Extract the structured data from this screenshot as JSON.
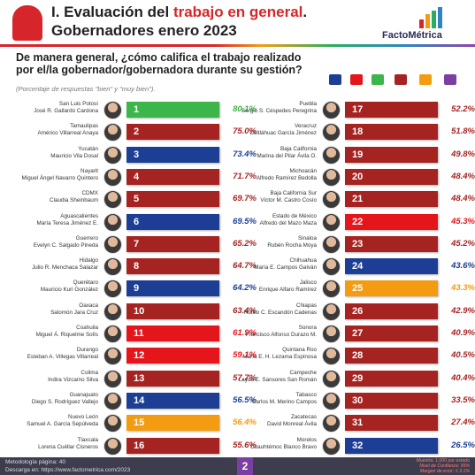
{
  "header": {
    "title_prefix": "I. Evaluación del ",
    "title_highlight": "trabajo en general",
    "title_suffix": ".",
    "title_line2": "Gobernadores enero 2023",
    "logo": "FactoMétrica"
  },
  "question": "De manera general, ¿cómo califica el trabajo realizado por el/la gobernador/gobernadora durante su gestión?",
  "subtitle": "(Porcentaje de respuestas \"bien\" y \"muy bien\").",
  "columns": [
    [
      {
        "state": "San Luis Potosí",
        "name": "José R. Gallardo Cardona",
        "rank": "1",
        "percent": "80.1%",
        "color": "#3cb54a"
      },
      {
        "state": "Tamaulipas",
        "name": "Américo Villarreal Anaya",
        "rank": "2",
        "percent": "75.0%",
        "color": "#a52422"
      },
      {
        "state": "Yucatán",
        "name": "Mauricio Vila Dosal",
        "rank": "3",
        "percent": "73.4%",
        "color": "#1c3e94"
      },
      {
        "state": "Nayarit",
        "name": "Miguel Ángel Navarro Quintero",
        "rank": "4",
        "percent": "71.7%",
        "color": "#a52422"
      },
      {
        "state": "CDMX",
        "name": "Claudia Sheinbaum",
        "rank": "5",
        "percent": "69.7%",
        "color": "#a52422"
      },
      {
        "state": "Aguascalientes",
        "name": "María Teresa Jiménez E.",
        "rank": "6",
        "percent": "69.5%",
        "color": "#1c3e94"
      },
      {
        "state": "Guerrero",
        "name": "Evelyn C. Salgado Pineda",
        "rank": "7",
        "percent": "65.2%",
        "color": "#a52422"
      },
      {
        "state": "Hidalgo",
        "name": "Julio R. Menchaca Salazar",
        "rank": "8",
        "percent": "64.7%",
        "color": "#a52422"
      },
      {
        "state": "Querétaro",
        "name": "Mauricio Kuri González",
        "rank": "9",
        "percent": "64.2%",
        "color": "#1c3e94"
      },
      {
        "state": "Oaxaca",
        "name": "Salomón Jara Cruz",
        "rank": "10",
        "percent": "63.4%",
        "color": "#a52422"
      },
      {
        "state": "Coahuila",
        "name": "Miguel Á. Riquelme Solís",
        "rank": "11",
        "percent": "61.9%",
        "color": "#e4161c"
      },
      {
        "state": "Durango",
        "name": "Esteban A. Villegas Villarreal",
        "rank": "12",
        "percent": "59.1%",
        "color": "#e4161c"
      },
      {
        "state": "Colima",
        "name": "Indira Vizcaíno Silva",
        "rank": "13",
        "percent": "57.7%",
        "color": "#a52422"
      },
      {
        "state": "Guanajuato",
        "name": "Diego S. Rodríguez Vallejo",
        "rank": "14",
        "percent": "56.5%",
        "color": "#1c3e94"
      },
      {
        "state": "Nuevo León",
        "name": "Samuel A. García Sepúlveda",
        "rank": "15",
        "percent": "56.4%",
        "color": "#f39c12"
      },
      {
        "state": "Tlaxcala",
        "name": "Lorena Cuéllar Cisneros",
        "rank": "16",
        "percent": "55.6%",
        "color": "#a52422"
      }
    ],
    [
      {
        "state": "Puebla",
        "name": "Sergio S. Céspedes Peregrina",
        "rank": "17",
        "percent": "52.2%",
        "color": "#a52422"
      },
      {
        "state": "Veracruz",
        "name": "Cuitláhuac García Jiménez",
        "rank": "18",
        "percent": "51.8%",
        "color": "#a52422"
      },
      {
        "state": "Baja California",
        "name": "Marina del Pilar Ávila O.",
        "rank": "19",
        "percent": "49.8%",
        "color": "#a52422"
      },
      {
        "state": "Michoacán",
        "name": "Alfredo Ramírez Bedolla",
        "rank": "20",
        "percent": "48.4%",
        "color": "#a52422"
      },
      {
        "state": "Baja California Sur",
        "name": "Víctor M. Castro Cosío",
        "rank": "21",
        "percent": "48.4%",
        "color": "#a52422"
      },
      {
        "state": "Estado de México",
        "name": "Alfredo del Mazo Maza",
        "rank": "22",
        "percent": "45.3%",
        "color": "#e4161c"
      },
      {
        "state": "Sinaloa",
        "name": "Rubén Rocha Moya",
        "rank": "23",
        "percent": "45.2%",
        "color": "#a52422"
      },
      {
        "state": "Chihuahua",
        "name": "María E. Campos Galván",
        "rank": "24",
        "percent": "43.6%",
        "color": "#1c3e94"
      },
      {
        "state": "Jalisco",
        "name": "Enrique Alfaro Ramírez",
        "rank": "25",
        "percent": "43.3%",
        "color": "#f39c12"
      },
      {
        "state": "Chiapas",
        "name": "Rutilio C. Escandón Cadenas",
        "rank": "26",
        "percent": "42.9%",
        "color": "#a52422"
      },
      {
        "state": "Sonora",
        "name": "Francisco Alfonso Durazo M.",
        "rank": "27",
        "percent": "40.9%",
        "color": "#a52422"
      },
      {
        "state": "Quintana Roo",
        "name": "María E. H. Lezama Espinosa",
        "rank": "28",
        "percent": "40.5%",
        "color": "#a52422"
      },
      {
        "state": "Campeche",
        "name": "Layda E. Sansores San Román",
        "rank": "29",
        "percent": "40.4%",
        "color": "#a52422"
      },
      {
        "state": "Tabasco",
        "name": "Carlos M. Merino Campos",
        "rank": "30",
        "percent": "33.5%",
        "color": "#a52422"
      },
      {
        "state": "Zacatecas",
        "name": "David Monreal Ávila",
        "rank": "31",
        "percent": "27.4%",
        "color": "#a52422"
      },
      {
        "state": "Morelos",
        "name": "Cuauhtémoc Blanco Bravo",
        "rank": "32",
        "percent": "26.5%",
        "color": "#1c3e94"
      }
    ]
  ],
  "footer": {
    "method": "Metodología página: 40",
    "download": "Descarga en: https://www.factometrica.com/2023",
    "page": "2",
    "sample": "Muestra: 1,000 por estado",
    "confidence": "Nivel de Confianza: 95%",
    "error": "Margen de error: ± 3.1%"
  }
}
